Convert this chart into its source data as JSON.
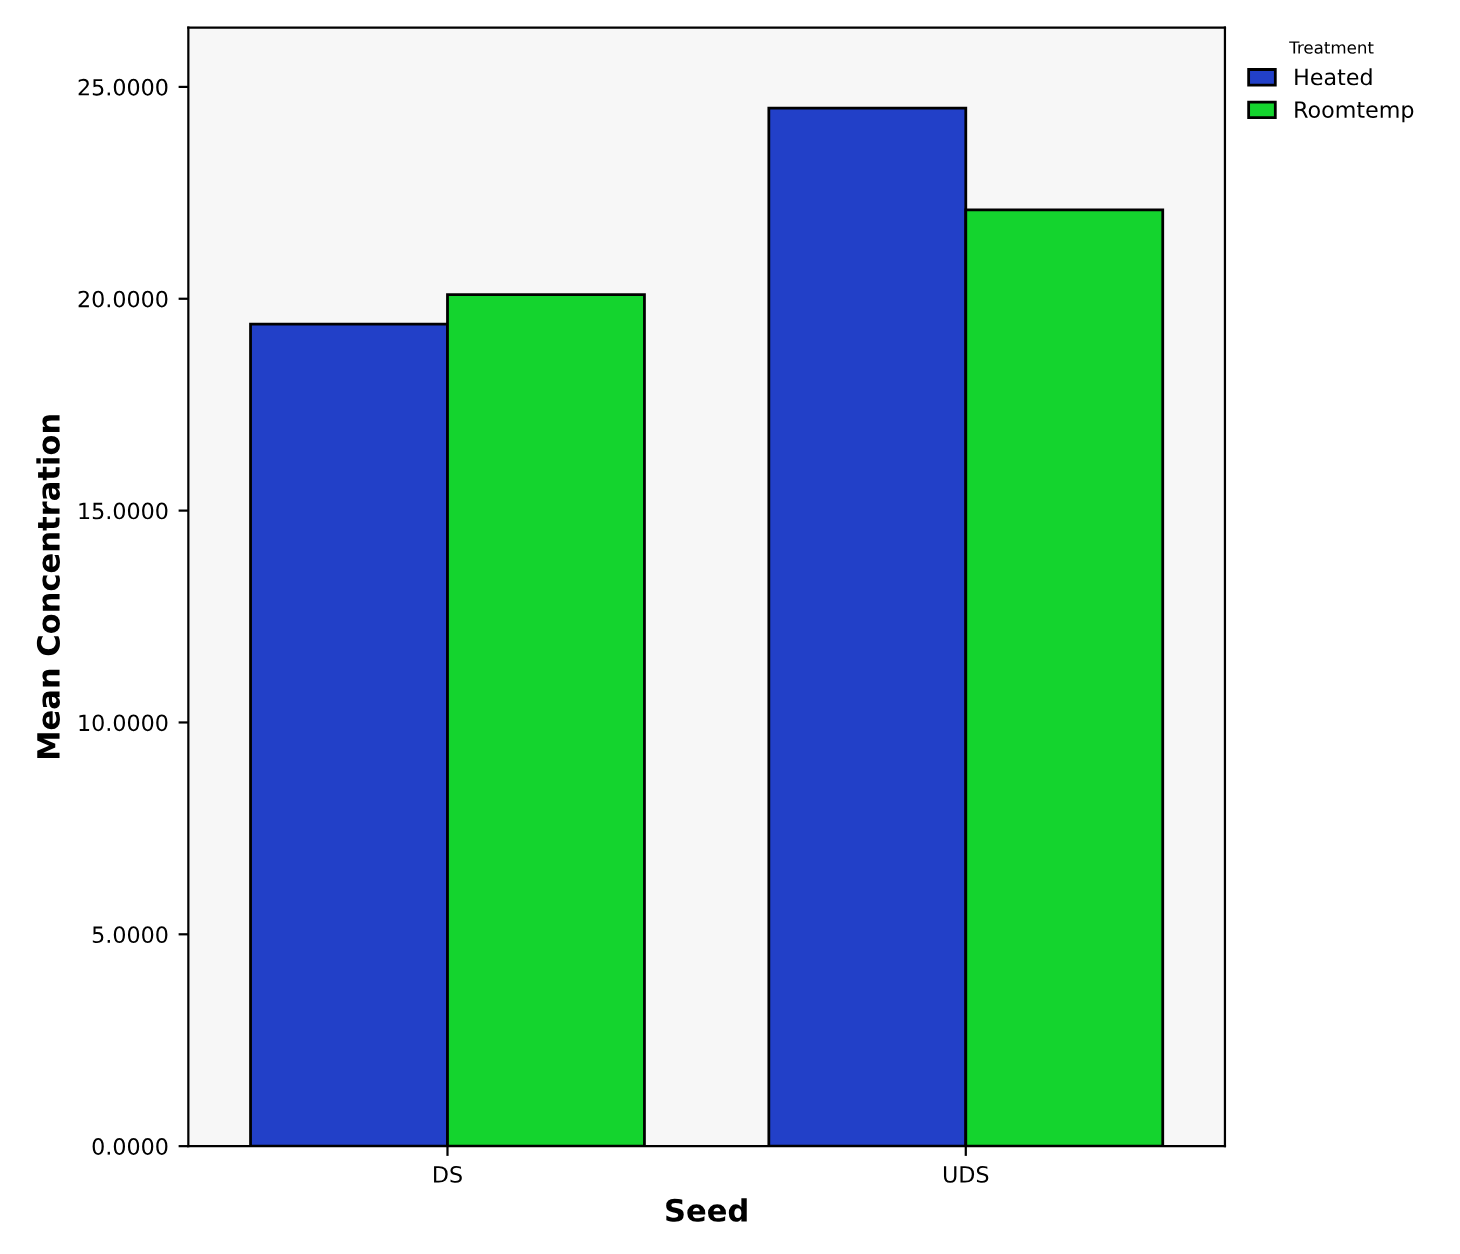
{
  "chart_data": {
    "type": "bar",
    "xlabel": "Seed",
    "ylabel": "Mean Concentration",
    "legend_title": "Treatment",
    "categories": [
      "DS",
      "UDS"
    ],
    "series": [
      {
        "name": "Heated",
        "color": "#2240c8",
        "values": [
          19.4,
          24.5
        ]
      },
      {
        "name": "Roomtemp",
        "color": "#14d42e",
        "values": [
          20.1,
          22.1
        ]
      }
    ],
    "ylim": [
      0,
      26.4
    ],
    "yticks": [
      {
        "value": 0,
        "label": "0.0000"
      },
      {
        "value": 5,
        "label": "5.0000"
      },
      {
        "value": 10,
        "label": "10.0000"
      },
      {
        "value": 15,
        "label": "15.0000"
      },
      {
        "value": 20,
        "label": "20.0000"
      },
      {
        "value": 25,
        "label": "25.0000"
      }
    ],
    "grid": false,
    "legend": "top right"
  }
}
